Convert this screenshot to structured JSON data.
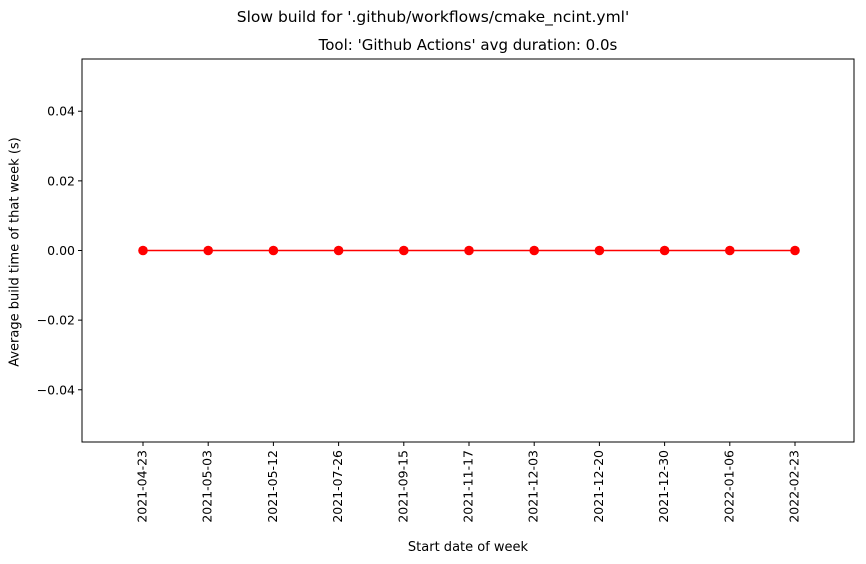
{
  "chart_data": {
    "type": "line",
    "suptitle": "Slow build for '.github/workflows/cmake_ncint.yml'",
    "title": "Tool: 'Github Actions' avg duration: 0.0s",
    "xlabel": "Start date of week",
    "ylabel": "Average build time of that week (s)",
    "categories": [
      "2021-04-23",
      "2021-05-03",
      "2021-05-12",
      "2021-07-26",
      "2021-09-15",
      "2021-11-17",
      "2021-12-03",
      "2021-12-20",
      "2021-12-30",
      "2022-01-06",
      "2022-02-23"
    ],
    "series": [
      {
        "values": [
          0,
          0,
          0,
          0,
          0,
          0,
          0,
          0,
          0,
          0,
          0
        ],
        "color": "#ff0000",
        "marker": "circle"
      }
    ],
    "ylim": [
      -0.055,
      0.055
    ],
    "yticks": [
      -0.04,
      -0.02,
      0.0,
      0.02,
      0.04
    ],
    "ytick_labels": [
      "−0.04",
      "−0.02",
      "0.00",
      "0.02",
      "0.04"
    ],
    "grid": false,
    "legend": "none"
  }
}
